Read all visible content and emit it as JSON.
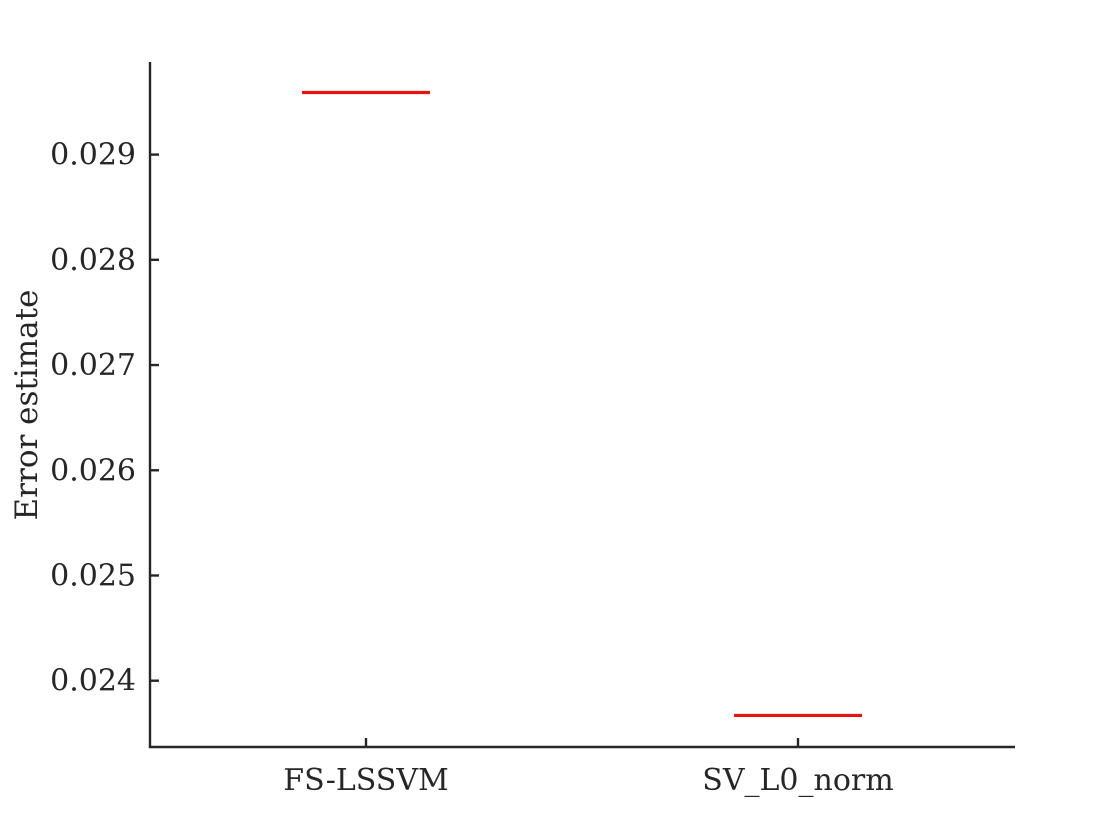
{
  "chart_data": {
    "type": "box",
    "categories": [
      "FS-LSSVM",
      "SV_L0_norm"
    ],
    "series": [
      {
        "values": [
          0.02959,
          0.02367
        ]
      }
    ],
    "ylabel": "Error estimate",
    "xlabel": "",
    "title": "",
    "ylim": [
      0.02337,
      0.02988
    ],
    "yticks": [
      0.024,
      0.025,
      0.026,
      0.027,
      0.028,
      0.029
    ],
    "ytick_labels": [
      "0.024",
      "0.025",
      "0.026",
      "0.027",
      "0.028",
      "0.029"
    ],
    "grid": false,
    "legend": "none",
    "colors": {
      "median": "#e8130f",
      "axis": "#262626"
    }
  }
}
